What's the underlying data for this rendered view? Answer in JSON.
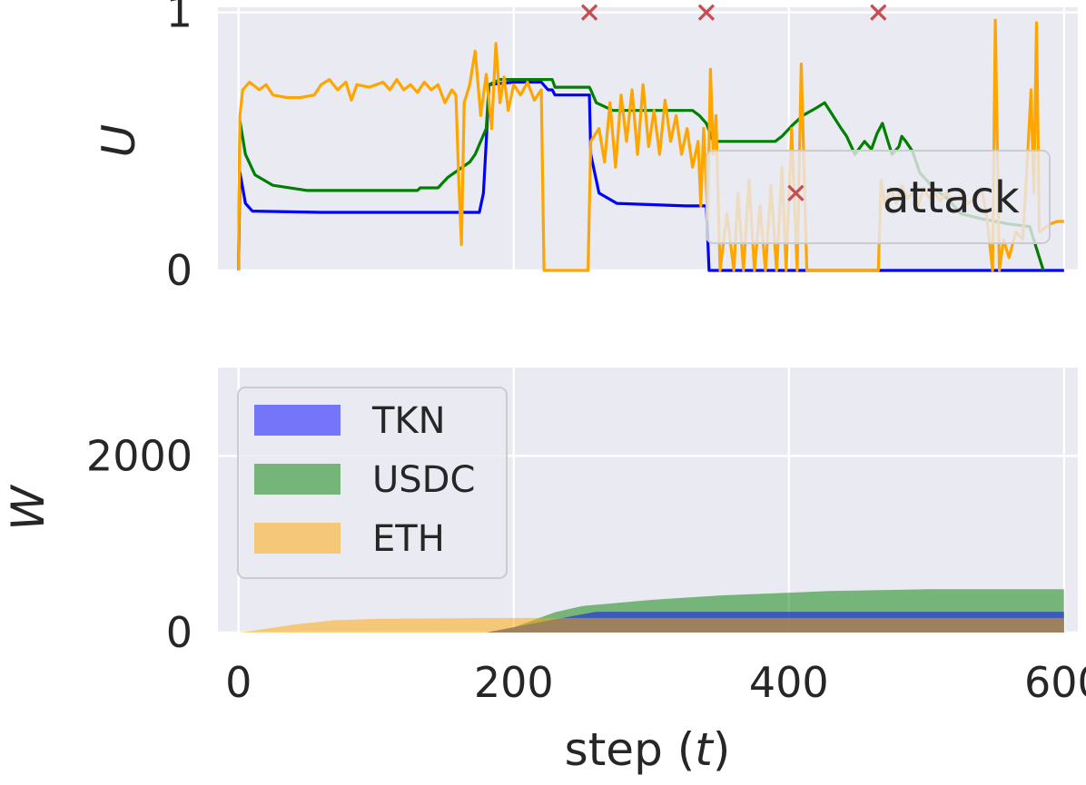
{
  "chart_data": [
    {
      "type": "line",
      "ylabel": "U",
      "xlim": [
        -15,
        610
      ],
      "ylim": [
        0,
        1.02
      ],
      "yticks": [
        "0",
        "1"
      ],
      "grid": true,
      "legend_placement": "center-right",
      "legend": [
        {
          "label": "attack",
          "marker": "x",
          "color": "#c44e52"
        }
      ],
      "attack_markers": {
        "x": [
          255,
          340,
          465,
          405
        ],
        "y": [
          1.0,
          1.0,
          1.0,
          0.3
        ]
      },
      "series": [
        {
          "color": "#0000ff",
          "points": [
            [
              0,
              0
            ],
            [
              1,
              0.38
            ],
            [
              5,
              0.26
            ],
            [
              10,
              0.23
            ],
            [
              60,
              0.225
            ],
            [
              150,
              0.225
            ],
            [
              175,
              0.225
            ],
            [
              178,
              0.3
            ],
            [
              180,
              0.5
            ],
            [
              182,
              0.72
            ],
            [
              200,
              0.73
            ],
            [
              220,
              0.73
            ],
            [
              225,
              0.7
            ],
            [
              228,
              0.7
            ],
            [
              230,
              0.68
            ],
            [
              250,
              0.68
            ],
            [
              255,
              0.68
            ],
            [
              256,
              0.45
            ],
            [
              262,
              0.3
            ],
            [
              275,
              0.26
            ],
            [
              300,
              0.255
            ],
            [
              325,
              0.25
            ],
            [
              340,
              0.25
            ],
            [
              342,
              0.0
            ],
            [
              600,
              0.0
            ]
          ]
        },
        {
          "color": "#008000",
          "points": [
            [
              0,
              0
            ],
            [
              1,
              0.58
            ],
            [
              5,
              0.45
            ],
            [
              12,
              0.37
            ],
            [
              25,
              0.33
            ],
            [
              50,
              0.31
            ],
            [
              100,
              0.31
            ],
            [
              130,
              0.31
            ],
            [
              132,
              0.32
            ],
            [
              145,
              0.32
            ],
            [
              152,
              0.36
            ],
            [
              160,
              0.39
            ],
            [
              168,
              0.42
            ],
            [
              172,
              0.45
            ],
            [
              176,
              0.5
            ],
            [
              180,
              0.55
            ],
            [
              182,
              0.72
            ],
            [
              190,
              0.74
            ],
            [
              228,
              0.74
            ],
            [
              230,
              0.71
            ],
            [
              255,
              0.71
            ],
            [
              256,
              0.7
            ],
            [
              260,
              0.65
            ],
            [
              272,
              0.62
            ],
            [
              330,
              0.62
            ],
            [
              335,
              0.6
            ],
            [
              340,
              0.57
            ],
            [
              345,
              0.5
            ],
            [
              380,
              0.5
            ],
            [
              390,
              0.5
            ],
            [
              395,
              0.52
            ],
            [
              402,
              0.56
            ],
            [
              410,
              0.6
            ],
            [
              420,
              0.63
            ],
            [
              426,
              0.65
            ],
            [
              432,
              0.6
            ],
            [
              438,
              0.55
            ],
            [
              442,
              0.52
            ],
            [
              448,
              0.45
            ],
            [
              455,
              0.5
            ],
            [
              460,
              0.47
            ],
            [
              464,
              0.53
            ],
            [
              468,
              0.57
            ],
            [
              472,
              0.5
            ],
            [
              475,
              0.45
            ],
            [
              480,
              0.48
            ],
            [
              482,
              0.52
            ],
            [
              485,
              0.5
            ],
            [
              490,
              0.46
            ],
            [
              495,
              0.38
            ],
            [
              505,
              0.32
            ],
            [
              515,
              0.28
            ],
            [
              525,
              0.22
            ],
            [
              540,
              0.2
            ],
            [
              560,
              0.18
            ],
            [
              575,
              0.17
            ],
            [
              582,
              0.05
            ],
            [
              585,
              0.0
            ]
          ]
        },
        {
          "color": "#ffa500",
          "points": [
            [
              0,
              0
            ],
            [
              1,
              0.6
            ],
            [
              3,
              0.7
            ],
            [
              8,
              0.73
            ],
            [
              15,
              0.7
            ],
            [
              20,
              0.72
            ],
            [
              25,
              0.68
            ],
            [
              35,
              0.67
            ],
            [
              45,
              0.67
            ],
            [
              55,
              0.68
            ],
            [
              60,
              0.72
            ],
            [
              66,
              0.74
            ],
            [
              72,
              0.7
            ],
            [
              78,
              0.73
            ],
            [
              82,
              0.66
            ],
            [
              86,
              0.72
            ],
            [
              95,
              0.71
            ],
            [
              105,
              0.73
            ],
            [
              110,
              0.7
            ],
            [
              115,
              0.74
            ],
            [
              120,
              0.7
            ],
            [
              125,
              0.72
            ],
            [
              130,
              0.69
            ],
            [
              135,
              0.73
            ],
            [
              140,
              0.7
            ],
            [
              145,
              0.72
            ],
            [
              150,
              0.65
            ],
            [
              155,
              0.7
            ],
            [
              158,
              0.68
            ],
            [
              160,
              0.35
            ],
            [
              162,
              0.1
            ],
            [
              164,
              0.65
            ],
            [
              168,
              0.72
            ],
            [
              172,
              0.85
            ],
            [
              176,
              0.6
            ],
            [
              180,
              0.76
            ],
            [
              184,
              0.55
            ],
            [
              187,
              0.88
            ],
            [
              190,
              0.65
            ],
            [
              193,
              0.75
            ],
            [
              196,
              0.62
            ],
            [
              200,
              0.72
            ],
            [
              205,
              0.68
            ],
            [
              210,
              0.73
            ],
            [
              215,
              0.66
            ],
            [
              220,
              0.7
            ],
            [
              222,
              0.0
            ],
            [
              254,
              0.0
            ],
            [
              256,
              0.5
            ],
            [
              262,
              0.55
            ],
            [
              266,
              0.42
            ],
            [
              270,
              0.65
            ],
            [
              274,
              0.4
            ],
            [
              278,
              0.68
            ],
            [
              282,
              0.5
            ],
            [
              286,
              0.7
            ],
            [
              290,
              0.45
            ],
            [
              294,
              0.72
            ],
            [
              298,
              0.48
            ],
            [
              302,
              0.62
            ],
            [
              306,
              0.45
            ],
            [
              310,
              0.66
            ],
            [
              314,
              0.5
            ],
            [
              318,
              0.6
            ],
            [
              322,
              0.45
            ],
            [
              326,
              0.55
            ],
            [
              330,
              0.4
            ],
            [
              334,
              0.5
            ],
            [
              336,
              0.25
            ],
            [
              338,
              0.55
            ],
            [
              341,
              0.2
            ],
            [
              343,
              0.78
            ],
            [
              345,
              0.45
            ],
            [
              347,
              0.6
            ],
            [
              350,
              0.0
            ],
            [
              355,
              0.22
            ],
            [
              360,
              0.0
            ],
            [
              363,
              0.3
            ],
            [
              367,
              0.0
            ],
            [
              371,
              0.35
            ],
            [
              375,
              0.0
            ],
            [
              379,
              0.25
            ],
            [
              383,
              0.0
            ],
            [
              387,
              0.33
            ],
            [
              391,
              0.0
            ],
            [
              395,
              0.4
            ],
            [
              398,
              0.0
            ],
            [
              402,
              0.55
            ],
            [
              406,
              0.0
            ],
            [
              409,
              0.8
            ],
            [
              413,
              0.0
            ],
            [
              465,
              0.0
            ],
            [
              467,
              0.35
            ],
            [
              470,
              0.25
            ],
            [
              474,
              0.32
            ],
            [
              478,
              0.26
            ],
            [
              482,
              0.33
            ],
            [
              486,
              0.28
            ],
            [
              490,
              0.3
            ],
            [
              494,
              0.25
            ],
            [
              498,
              0.32
            ],
            [
              502,
              0.28
            ],
            [
              506,
              0.3
            ],
            [
              510,
              0.27
            ],
            [
              514,
              0.3
            ],
            [
              520,
              0.27
            ],
            [
              526,
              0.29
            ],
            [
              530,
              0.26
            ],
            [
              536,
              0.28
            ],
            [
              540,
              0.32
            ],
            [
              544,
              0.2
            ],
            [
              548,
              0.0
            ],
            [
              550,
              0.97
            ],
            [
              553,
              0.0
            ],
            [
              556,
              0.12
            ],
            [
              560,
              0.05
            ],
            [
              565,
              0.15
            ],
            [
              570,
              0.12
            ],
            [
              574,
              0.5
            ],
            [
              576,
              0.7
            ],
            [
              578,
              0.3
            ],
            [
              580,
              0.96
            ],
            [
              582,
              0.15
            ],
            [
              585,
              0.16
            ],
            [
              590,
              0.18
            ],
            [
              595,
              0.19
            ],
            [
              600,
              0.19
            ]
          ]
        }
      ]
    },
    {
      "type": "area",
      "xlabel": "step (t)",
      "ylabel": "W",
      "xlim": [
        -15,
        610
      ],
      "ylim": [
        0,
        3000
      ],
      "xticks": [
        "0",
        "200",
        "400",
        "600"
      ],
      "yticks": [
        "0",
        "2000"
      ],
      "grid": true,
      "legend_placement": "upper-left",
      "series": [
        {
          "name": "TKN",
          "color": "#0000ff",
          "x": [
            0,
            180,
            230,
            260,
            600
          ],
          "values": [
            0,
            0,
            150,
            235,
            235
          ]
        },
        {
          "name": "USDC",
          "color": "#008000",
          "x": [
            0,
            180,
            200,
            230,
            250,
            300,
            350,
            430,
            500,
            600
          ],
          "values": [
            0,
            0,
            60,
            230,
            300,
            370,
            420,
            470,
            490,
            490
          ]
        },
        {
          "name": "ETH",
          "color": "#ffa500",
          "x": [
            0,
            10,
            40,
            70,
            100,
            150,
            200,
            250,
            300,
            400,
            500,
            600
          ],
          "values": [
            0,
            20,
            90,
            140,
            155,
            160,
            165,
            165,
            165,
            165,
            165,
            165
          ]
        }
      ]
    }
  ]
}
